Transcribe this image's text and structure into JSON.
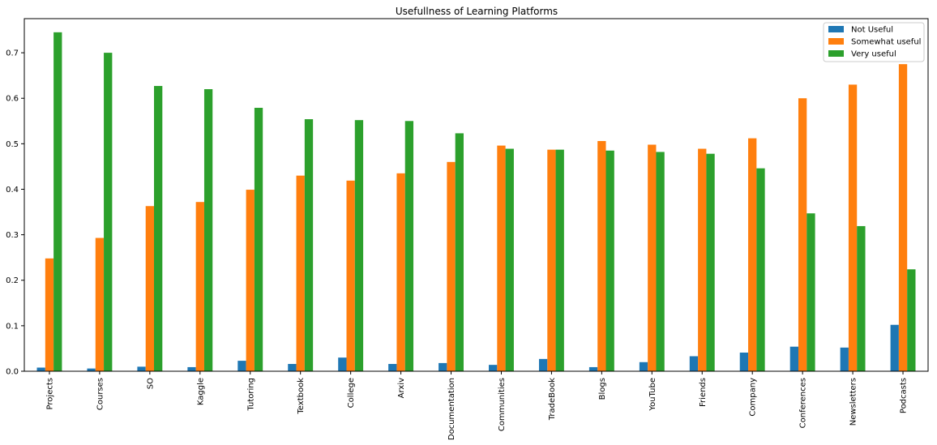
{
  "chart_data": {
    "type": "bar",
    "title": "Usefullness of Learning Platforms",
    "xlabel": "",
    "ylabel": "",
    "ylim": [
      0,
      0.775
    ],
    "yticks": [
      0.0,
      0.1,
      0.2,
      0.3,
      0.4,
      0.5,
      0.6,
      0.7
    ],
    "ytick_labels": [
      "0.0",
      "0.1",
      "0.2",
      "0.3",
      "0.4",
      "0.5",
      "0.6",
      "0.7"
    ],
    "categories": [
      "Projects",
      "Courses",
      "SO",
      "Kaggle",
      "Tutoring",
      "Textbook",
      "College",
      "Arxiv",
      "Documentation",
      "Communities",
      "TradeBook",
      "Blogs",
      "YouTube",
      "Friends",
      "Company",
      "Conferences",
      "Newsletters",
      "Podcasts"
    ],
    "series": [
      {
        "name": "Not Useful",
        "color": "#1f77b4",
        "values": [
          0.008,
          0.006,
          0.01,
          0.009,
          0.023,
          0.016,
          0.03,
          0.016,
          0.018,
          0.014,
          0.027,
          0.009,
          0.02,
          0.033,
          0.041,
          0.054,
          0.052,
          0.102
        ]
      },
      {
        "name": "Somewhat useful",
        "color": "#ff7f0e",
        "values": [
          0.248,
          0.293,
          0.363,
          0.372,
          0.399,
          0.43,
          0.419,
          0.435,
          0.46,
          0.496,
          0.487,
          0.506,
          0.498,
          0.489,
          0.512,
          0.6,
          0.63,
          0.675
        ]
      },
      {
        "name": "Very useful",
        "color": "#2ca02c",
        "values": [
          0.745,
          0.7,
          0.627,
          0.62,
          0.579,
          0.554,
          0.552,
          0.55,
          0.523,
          0.489,
          0.487,
          0.485,
          0.482,
          0.478,
          0.446,
          0.347,
          0.319,
          0.224
        ]
      }
    ],
    "legend_position": "top-right",
    "grid": false
  }
}
